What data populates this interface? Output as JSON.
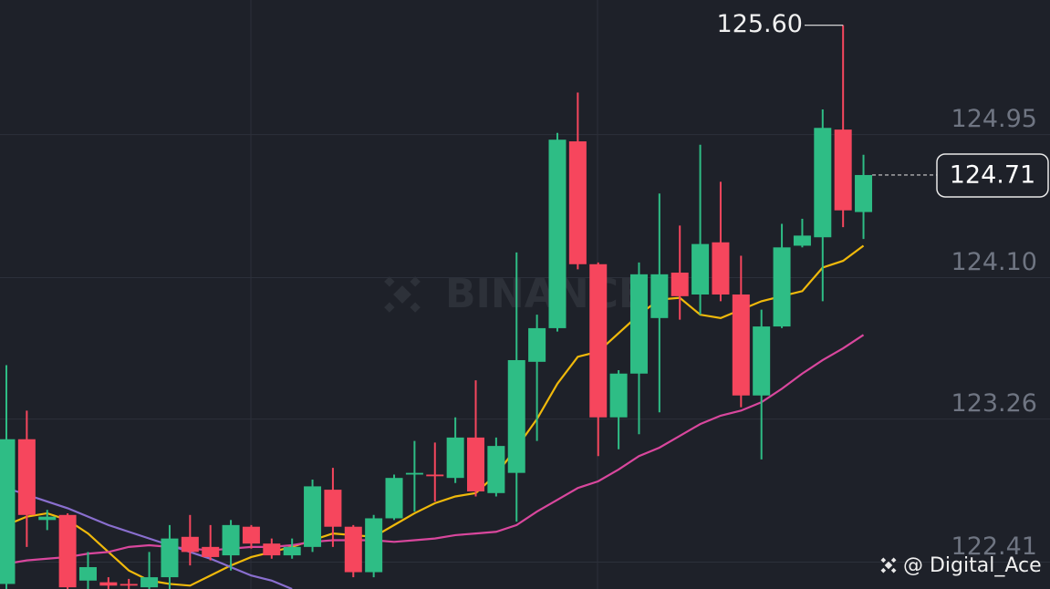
{
  "chart_data": {
    "type": "candlestick",
    "open": [
      122.28,
      123.14,
      122.66,
      122.69,
      122.3,
      122.29,
      122.28,
      122.26,
      122.32,
      122.56,
      122.5,
      122.45,
      122.62,
      122.52,
      122.45,
      122.5,
      122.84,
      122.62,
      122.35,
      122.67,
      122.93,
      122.93,
      122.91,
      123.15,
      122.82,
      122.94,
      123.6,
      123.8,
      124.91,
      124.18,
      123.27,
      123.53,
      123.86,
      124.13,
      124.0,
      124.31,
      124.0,
      123.4,
      123.81,
      124.29,
      124.34,
      124.98,
      124.49
    ],
    "high": [
      123.58,
      123.31,
      122.72,
      122.7,
      122.47,
      122.32,
      122.31,
      122.47,
      122.63,
      122.69,
      122.63,
      122.66,
      122.63,
      122.55,
      122.55,
      122.9,
      122.97,
      122.63,
      122.69,
      122.93,
      123.13,
      123.12,
      123.27,
      123.49,
      123.15,
      124.25,
      123.88,
      124.96,
      125.2,
      124.19,
      123.55,
      124.19,
      124.6,
      124.41,
      124.89,
      124.67,
      124.23,
      123.91,
      124.42,
      124.45,
      125.1,
      125.6,
      124.83
    ],
    "low": [
      122.25,
      122.5,
      122.6,
      122.25,
      122.25,
      122.25,
      122.25,
      122.25,
      122.25,
      122.39,
      122.42,
      122.36,
      122.49,
      122.43,
      122.43,
      122.47,
      122.5,
      122.32,
      122.32,
      122.66,
      122.71,
      122.77,
      122.88,
      122.8,
      122.8,
      122.65,
      123.13,
      123.78,
      124.15,
      123.04,
      123.08,
      123.17,
      123.3,
      123.85,
      123.88,
      123.96,
      123.33,
      123.02,
      123.8,
      124.28,
      123.96,
      124.4,
      124.33
    ],
    "close": [
      123.14,
      122.69,
      122.68,
      122.26,
      122.38,
      122.27,
      122.27,
      122.32,
      122.55,
      122.47,
      122.44,
      122.63,
      122.52,
      122.45,
      122.5,
      122.86,
      122.62,
      122.35,
      122.67,
      122.91,
      122.94,
      122.92,
      123.15,
      122.83,
      123.1,
      123.61,
      123.8,
      124.92,
      124.18,
      123.27,
      123.53,
      124.12,
      124.12,
      123.99,
      124.3,
      124.0,
      123.4,
      123.81,
      124.28,
      124.35,
      124.99,
      124.5,
      124.71
    ],
    "up_color": "#2ebd85",
    "down_color": "#f6465d",
    "lines": [
      {
        "color": "#f0b90b",
        "values": [
          122.63,
          122.68,
          122.7,
          122.66,
          122.58,
          122.47,
          122.36,
          122.3,
          122.28,
          122.27,
          122.33,
          122.39,
          122.44,
          122.47,
          122.5,
          122.54,
          122.58,
          122.57,
          122.56,
          122.63,
          122.7,
          122.76,
          122.8,
          122.82,
          122.93,
          123.09,
          123.26,
          123.47,
          123.63,
          123.66,
          123.77,
          123.88,
          123.97,
          123.98,
          123.88,
          123.86,
          123.91,
          123.96,
          123.99,
          124.02,
          124.16,
          124.2,
          124.29
        ]
      },
      {
        "color": "#d9479d",
        "values": [
          122.4,
          122.42,
          122.43,
          122.44,
          122.46,
          122.47,
          122.5,
          122.51,
          122.5,
          122.49,
          122.48,
          122.49,
          122.5,
          122.5,
          122.51,
          122.53,
          122.54,
          122.54,
          122.54,
          122.53,
          122.54,
          122.55,
          122.57,
          122.58,
          122.59,
          122.63,
          122.71,
          122.78,
          122.85,
          122.89,
          122.96,
          123.04,
          123.09,
          123.16,
          123.23,
          123.28,
          123.31,
          123.36,
          123.44,
          123.53,
          123.61,
          123.68,
          123.76
        ]
      },
      {
        "color": "#8a6fcf",
        "values": [
          122.85,
          122.81,
          122.77,
          122.73,
          122.68,
          122.63,
          122.59,
          122.55,
          122.51,
          122.47,
          122.43,
          122.38,
          122.33,
          122.3,
          122.25,
          null,
          null,
          null,
          null,
          null,
          null,
          null,
          null,
          null,
          null,
          null,
          null,
          null,
          null,
          null,
          null,
          null,
          null,
          null,
          null,
          null,
          null,
          null,
          null,
          null,
          null,
          null,
          null
        ]
      }
    ],
    "ylim": [
      122.25,
      125.75
    ],
    "yticks": [
      {
        "value": 124.95,
        "label": "124.95"
      },
      {
        "value": 124.1,
        "label": "124.10"
      },
      123.26,
      122.41
    ],
    "grid": true,
    "max_marker": {
      "value": 125.6,
      "label": "125.60"
    },
    "last_price": 124.71
  },
  "watermark": "BINANCE",
  "credit": "@ Digital_Ace"
}
